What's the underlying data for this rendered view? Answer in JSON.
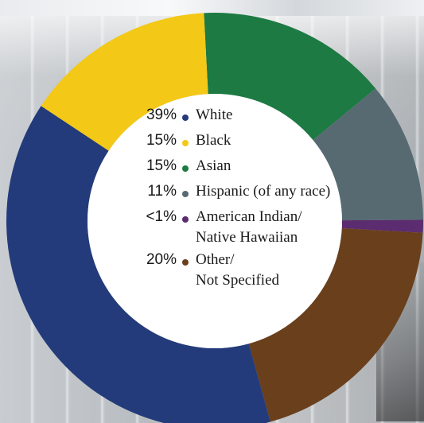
{
  "chart_data": {
    "type": "pie",
    "style": "donut",
    "series": [
      {
        "name": "White",
        "value": 39,
        "label": "39%",
        "color": "#233b7a"
      },
      {
        "name": "Black",
        "value": 15,
        "label": "15%",
        "color": "#f3c817"
      },
      {
        "name": "Asian",
        "value": 15,
        "label": "15%",
        "color": "#1c7a42"
      },
      {
        "name": "Hispanic (of any race)",
        "value": 11,
        "label": "11%",
        "color": "#576a72"
      },
      {
        "name": "American Indian/ Native Hawaiian",
        "value": 1,
        "label": "<1%",
        "color": "#5b2c6f"
      },
      {
        "name": "Other/ Not Specified",
        "value": 20,
        "label": "20%",
        "color": "#6a3f1c"
      }
    ],
    "legend": [
      {
        "pct": "39%",
        "lines": [
          "White"
        ],
        "color": "#233b7a"
      },
      {
        "pct": "15%",
        "lines": [
          "Black"
        ],
        "color": "#f3c817"
      },
      {
        "pct": "15%",
        "lines": [
          "Asian"
        ],
        "color": "#1c7a42"
      },
      {
        "pct": "11%",
        "lines": [
          "Hispanic (of any race)"
        ],
        "color": "#576a72"
      },
      {
        "pct": "<1%",
        "lines": [
          "American Indian/",
          "Native Hawaiian"
        ],
        "color": "#5b2c6f"
      },
      {
        "pct": "20%",
        "lines": [
          "Other/",
          "Not Specified"
        ],
        "color": "#6a3f1c"
      }
    ],
    "legend_placement": "center"
  }
}
